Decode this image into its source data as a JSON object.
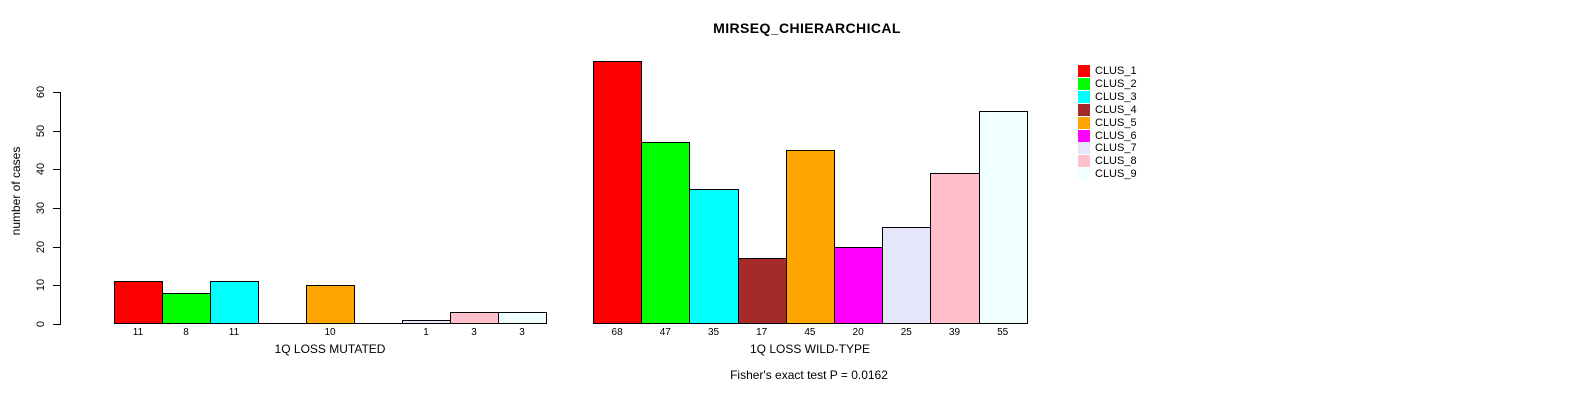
{
  "title": "MIRSEQ_CHIERARCHICAL",
  "footer": "Fisher's exact test P = 0.0162",
  "chart_data": {
    "type": "bar",
    "title": "MIRSEQ_CHIERARCHICAL",
    "ylabel": "number of cases",
    "ylim": [
      0,
      70
    ],
    "yticks": [
      0,
      10,
      20,
      30,
      40,
      50,
      60
    ],
    "grid": false,
    "legend_position": "right",
    "clusters": [
      "CLUS_1",
      "CLUS_2",
      "CLUS_3",
      "CLUS_4",
      "CLUS_5",
      "CLUS_6",
      "CLUS_7",
      "CLUS_8",
      "CLUS_9"
    ],
    "colors": [
      "#FF0000",
      "#00FF00",
      "#00FFFF",
      "#A52A2A",
      "#FFA500",
      "#FF00FF",
      "#E6E6FA",
      "#FFC0CB",
      "#F0FFFF"
    ],
    "panels": [
      {
        "xlabel": "1Q LOSS MUTATED",
        "categories": [
          "CLUS_1",
          "CLUS_2",
          "CLUS_3",
          "CLUS_4",
          "CLUS_5",
          "CLUS_6",
          "CLUS_7",
          "CLUS_8",
          "CLUS_9"
        ],
        "values": [
          11,
          8,
          11,
          0,
          10,
          0,
          1,
          3,
          3
        ],
        "bar_labels": [
          "11",
          "8",
          "11",
          "",
          "10",
          "",
          "1",
          "3",
          "3"
        ]
      },
      {
        "xlabel": "1Q LOSS WILD-TYPE",
        "categories": [
          "CLUS_1",
          "CLUS_2",
          "CLUS_3",
          "CLUS_4",
          "CLUS_5",
          "CLUS_6",
          "CLUS_7",
          "CLUS_8",
          "CLUS_9"
        ],
        "values": [
          68,
          47,
          35,
          17,
          45,
          20,
          25,
          39,
          55
        ],
        "bar_labels": [
          "68",
          "47",
          "35",
          "17",
          "45",
          "20",
          "25",
          "39",
          "55"
        ]
      }
    ],
    "annotation": "Fisher's exact test P = 0.0162"
  }
}
